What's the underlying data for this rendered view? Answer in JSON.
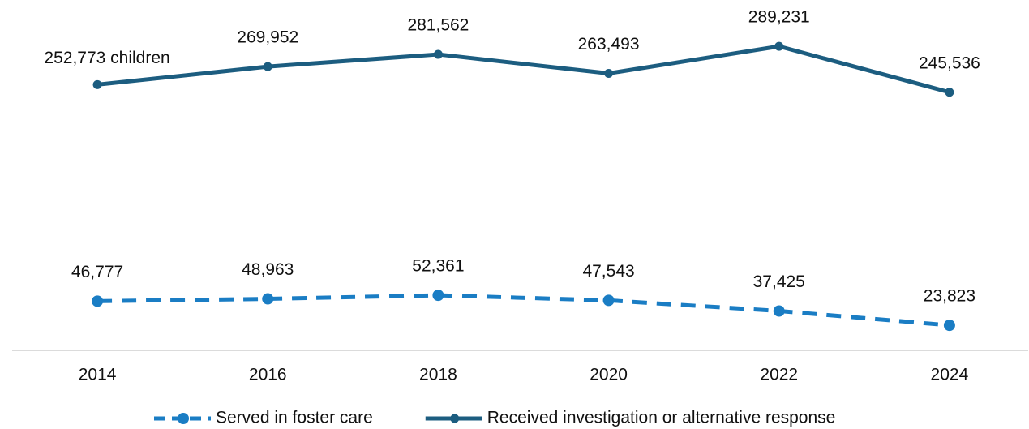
{
  "chart_data": {
    "type": "line",
    "categories": [
      "2014",
      "2016",
      "2018",
      "2020",
      "2022",
      "2024"
    ],
    "series": [
      {
        "name": "Served in foster care",
        "color": "#1a7dc4",
        "line_style": "dashed",
        "marker_size": 7,
        "values": [
          46777,
          48963,
          52361,
          47543,
          37425,
          23823
        ],
        "value_labels": [
          "46,777",
          "48,963",
          "52,361",
          "47,543",
          "37,425",
          "23,823"
        ]
      },
      {
        "name": "Received investigation or alternative response",
        "color": "#1c5d80",
        "line_style": "solid",
        "marker_size": 5.5,
        "values": [
          252773,
          269952,
          281562,
          263493,
          289231,
          245536
        ],
        "value_labels": [
          "252,773 children",
          "269,952",
          "281,562",
          "263,493",
          "289,231",
          "245,536"
        ]
      }
    ],
    "ylim": [
      0,
      333300
    ],
    "legend": "bottom"
  }
}
